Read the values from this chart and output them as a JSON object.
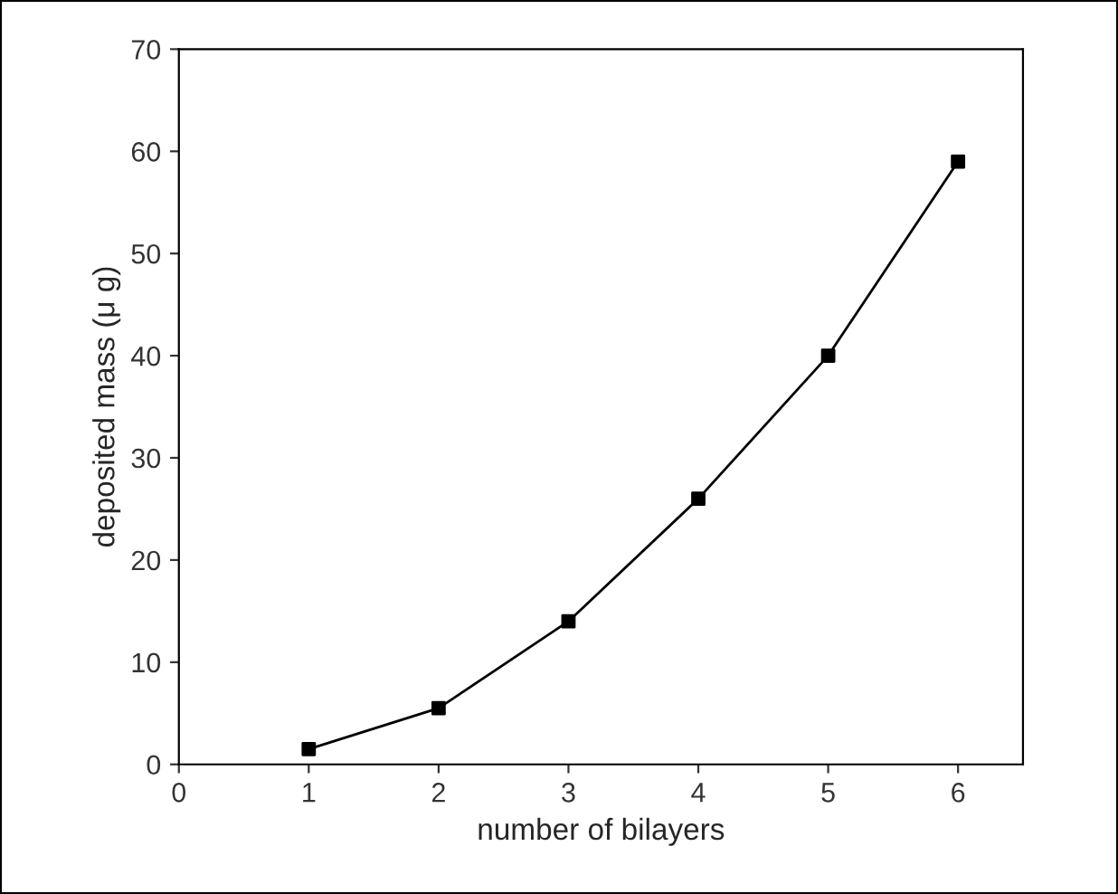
{
  "chart_data": {
    "type": "scatter",
    "xlabel": "number of bilayers",
    "ylabel": "deposited mass (μ g)",
    "xlim": [
      0,
      6.5
    ],
    "xticks": [
      0,
      1,
      2,
      3,
      4,
      5,
      6
    ],
    "ylim": [
      0,
      70
    ],
    "yticks": [
      0,
      10,
      20,
      30,
      40,
      50,
      60,
      70
    ],
    "grid": false,
    "legend": false,
    "series": [
      {
        "color": "#000000",
        "marker": "square",
        "x": [
          1,
          2,
          3,
          4,
          5,
          6
        ],
        "values": [
          1.5,
          5.5,
          14,
          26,
          40,
          59
        ]
      },
      {
        "type": "line",
        "color": "#000000",
        "marker": "none",
        "line_style": "solid",
        "x": [
          1,
          2,
          3,
          4,
          5,
          6
        ],
        "values": [
          1.5,
          5.5,
          14,
          26,
          40,
          59
        ]
      }
    ]
  }
}
